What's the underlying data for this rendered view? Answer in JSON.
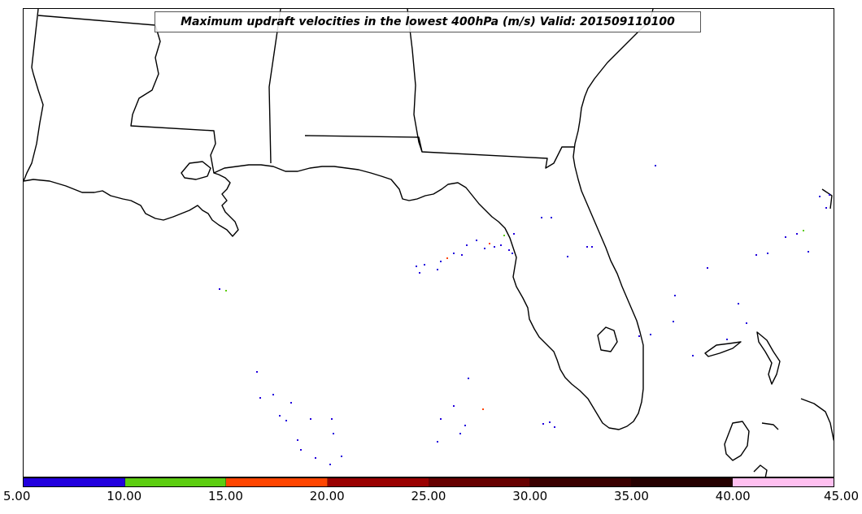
{
  "title": "Maximum updraft velocities in the lowest 400hPa (m/s) Valid: 201509110100",
  "colorbar": {
    "colors": [
      "#2200dd",
      "#5ccd10",
      "#ff4500",
      "#990000",
      "#660000",
      "#3a0000",
      "#250000",
      "#ffc0f0",
      "#ffe8ff"
    ],
    "ticks": [
      "5.00",
      "10.00",
      "15.00",
      "20.00",
      "25.00",
      "30.00",
      "35.00",
      "40.00",
      "45.00"
    ]
  }
}
